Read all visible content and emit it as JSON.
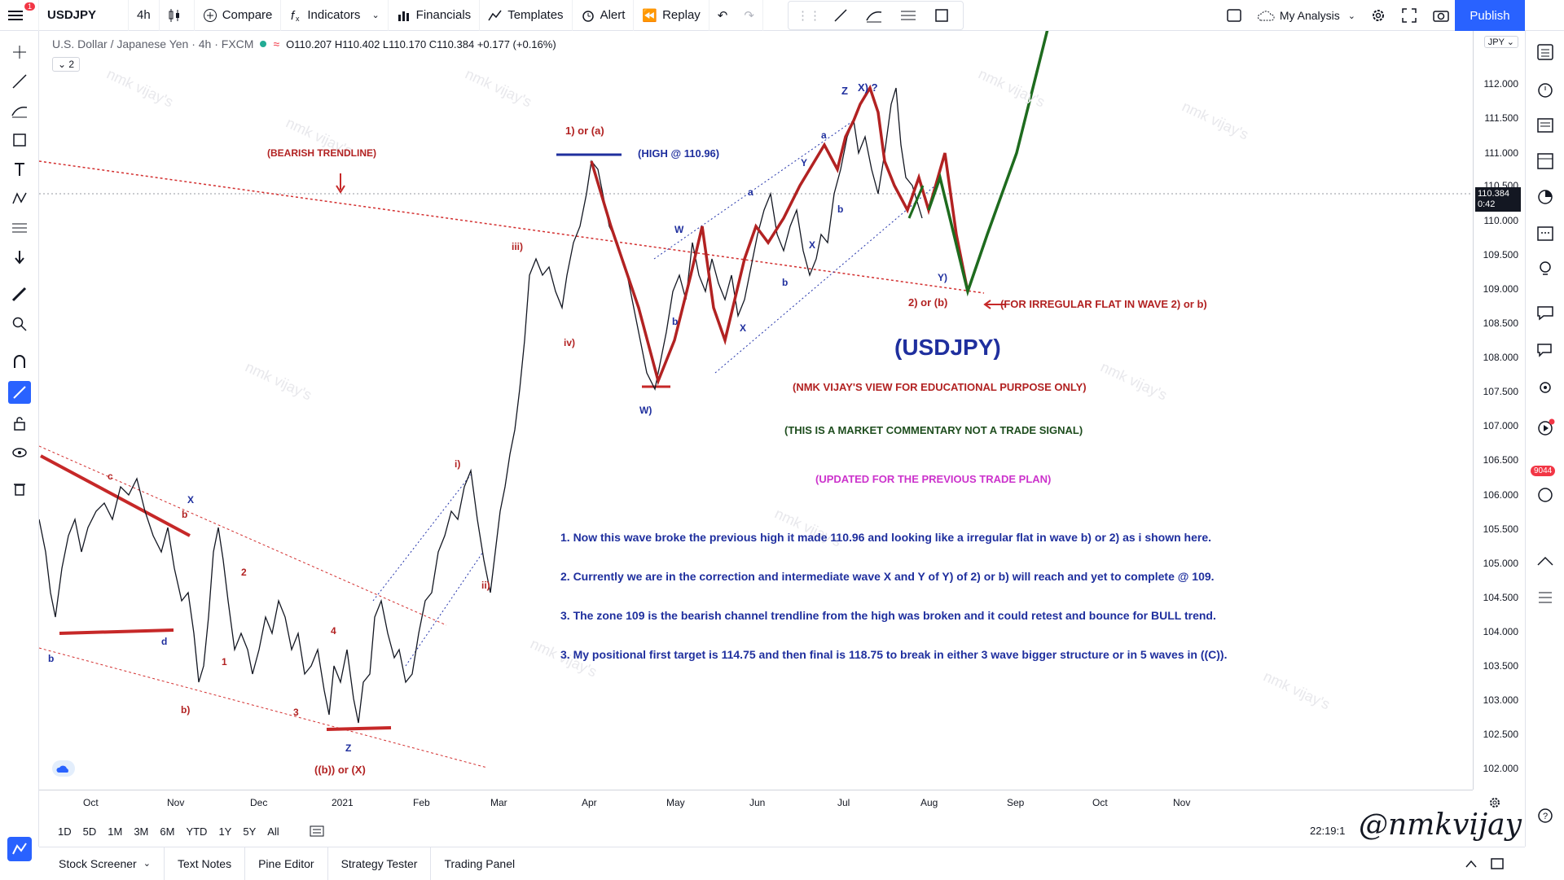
{
  "topbar": {
    "symbol": "USDJPY",
    "interval": "4h",
    "compare": "Compare",
    "indicators": "Indicators",
    "financials": "Financials",
    "templates": "Templates",
    "alert": "Alert",
    "replay": "Replay",
    "my_analysis": "My Analysis",
    "publish": "Publish",
    "notification_count": "1"
  },
  "legend": {
    "title": "U.S. Dollar / Japanese Yen · 4h · FXCM",
    "ohlc": "O110.207 H110.402 L110.170 C110.384 +0.177 (+0.16%)",
    "collapse": "2",
    "currency": "JPY"
  },
  "price_axis": {
    "ticks": [
      "112.000",
      "111.500",
      "111.000",
      "110.500",
      "110.000",
      "109.500",
      "109.000",
      "108.500",
      "108.000",
      "107.500",
      "107.000",
      "106.500",
      "106.000",
      "105.500",
      "105.000",
      "104.500",
      "104.000",
      "103.500",
      "103.000",
      "102.500",
      "102.000"
    ],
    "last_price": "110.384",
    "countdown": "0:42"
  },
  "time_axis": {
    "labels": [
      "Oct",
      "Nov",
      "Dec",
      "2021",
      "Feb",
      "Mar",
      "Apr",
      "May",
      "Jun",
      "Jul",
      "Aug",
      "Sep",
      "Oct",
      "Nov"
    ]
  },
  "annotations": {
    "bearish_trendline": "(BEARISH TRENDLINE)",
    "wave1": "1) or (a)",
    "high": "(HIGH @ 110.96)",
    "zx": "X) ?",
    "z": "Z",
    "wave2": "2) or (b)",
    "irregular": "(FOR IRREGULAR FLAT IN WAVE 2) or b)",
    "title": "(USDJPY)",
    "view": "(NMK VIJAY'S VIEW FOR EDUCATIONAL PURPOSE ONLY)",
    "commentary": "(THIS IS A MARKET COMMENTARY NOT A TRADE SIGNAL)",
    "updated": "(UPDATED FOR THE PREVIOUS TRADE PLAN)",
    "point1": "1. Now this wave broke the previous high it made 110.96 and looking like a irregular flat in wave b) or 2) as i shown here.",
    "point2": "2. Currently we are in the correction and intermediate wave X and Y of Y) of 2) or b) will reach and yet to complete @ 109.",
    "point3": "3. The zone 109 is the bearish channel trendline from the high was broken and it could retest and bounce for BULL trend.",
    "point4": "3. My positional first target is 114.75 and then final is 118.75 to break in either 3 wave bigger structure or in 5 waves in ((C)).",
    "bx": "((b)) or (X)",
    "watermark": "nmk vijay's",
    "signature": "@nmkvijay"
  },
  "bottom": {
    "timeframes": [
      "1D",
      "5D",
      "1M",
      "3M",
      "6M",
      "YTD",
      "1Y",
      "5Y",
      "All"
    ],
    "clock": "22:19:1"
  },
  "panels": [
    "Stock Screener",
    "Text Notes",
    "Pine Editor",
    "Strategy Tester",
    "Trading Panel"
  ],
  "colors": {
    "accent": "#2962ff",
    "wave_red": "#b22222",
    "wave_blue": "#1f2f9e",
    "target_green": "#1e6b1e",
    "magenta": "#cc33cc"
  }
}
